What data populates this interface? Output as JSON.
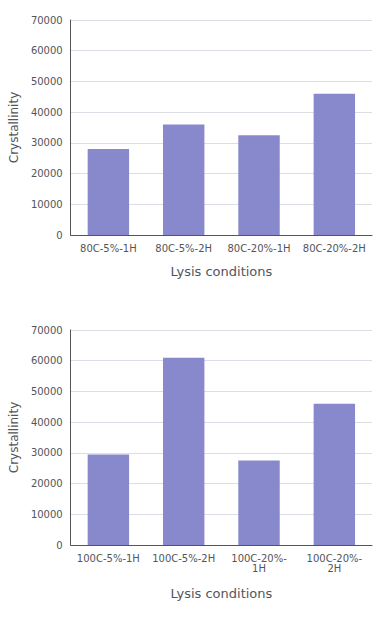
{
  "chart_data": [
    {
      "type": "bar",
      "categories": [
        "80C-5%-1H",
        "80C-5%-2H",
        "80C-20%-1H",
        "80C-20%-2H"
      ],
      "values": [
        28000,
        36000,
        32500,
        46000
      ],
      "color": "#8888cc",
      "xlabel": "Lysis conditions",
      "ylabel": "Crystallinity",
      "ylim": [
        0,
        70000
      ],
      "yticks": [
        0,
        10000,
        20000,
        30000,
        40000,
        50000,
        60000,
        70000
      ],
      "grid": true
    },
    {
      "type": "bar",
      "categories": [
        "100C-5%-1H",
        "100C-5%-2H",
        "100C-20%-\n1H",
        "100C-20%-\n2H"
      ],
      "values": [
        29500,
        61000,
        27500,
        46000
      ],
      "color": "#8888cc",
      "xlabel": "Lysis conditions",
      "ylabel": "Crystallinity",
      "ylim": [
        0,
        70000
      ],
      "yticks": [
        0,
        10000,
        20000,
        30000,
        40000,
        50000,
        60000,
        70000
      ],
      "grid": true
    }
  ]
}
